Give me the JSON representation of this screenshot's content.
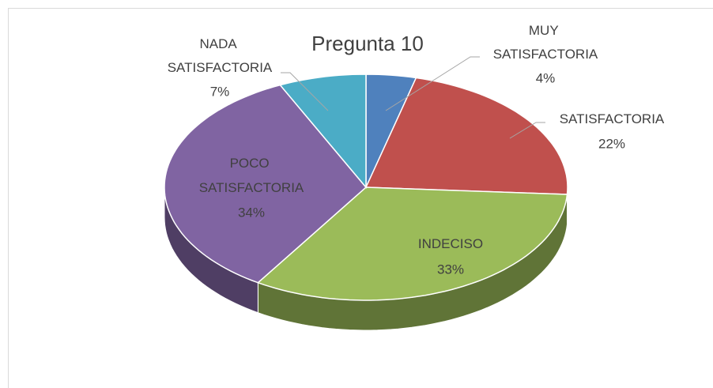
{
  "chart_data": {
    "type": "pie",
    "title": "Pregunta 10",
    "categories": [
      "MUY SATISFACTORIA",
      "SATISFACTORIA",
      "INDECISO",
      "POCO SATISFACTORIA",
      "NADA SATISFACTORIA"
    ],
    "values": [
      4,
      22,
      33,
      34,
      7
    ],
    "value_labels": [
      "4%",
      "22%",
      "33%",
      "34%",
      "7%"
    ],
    "colors": [
      "#4f81bd",
      "#c0504d",
      "#9bbb59",
      "#8064a2",
      "#4bacc6"
    ]
  }
}
